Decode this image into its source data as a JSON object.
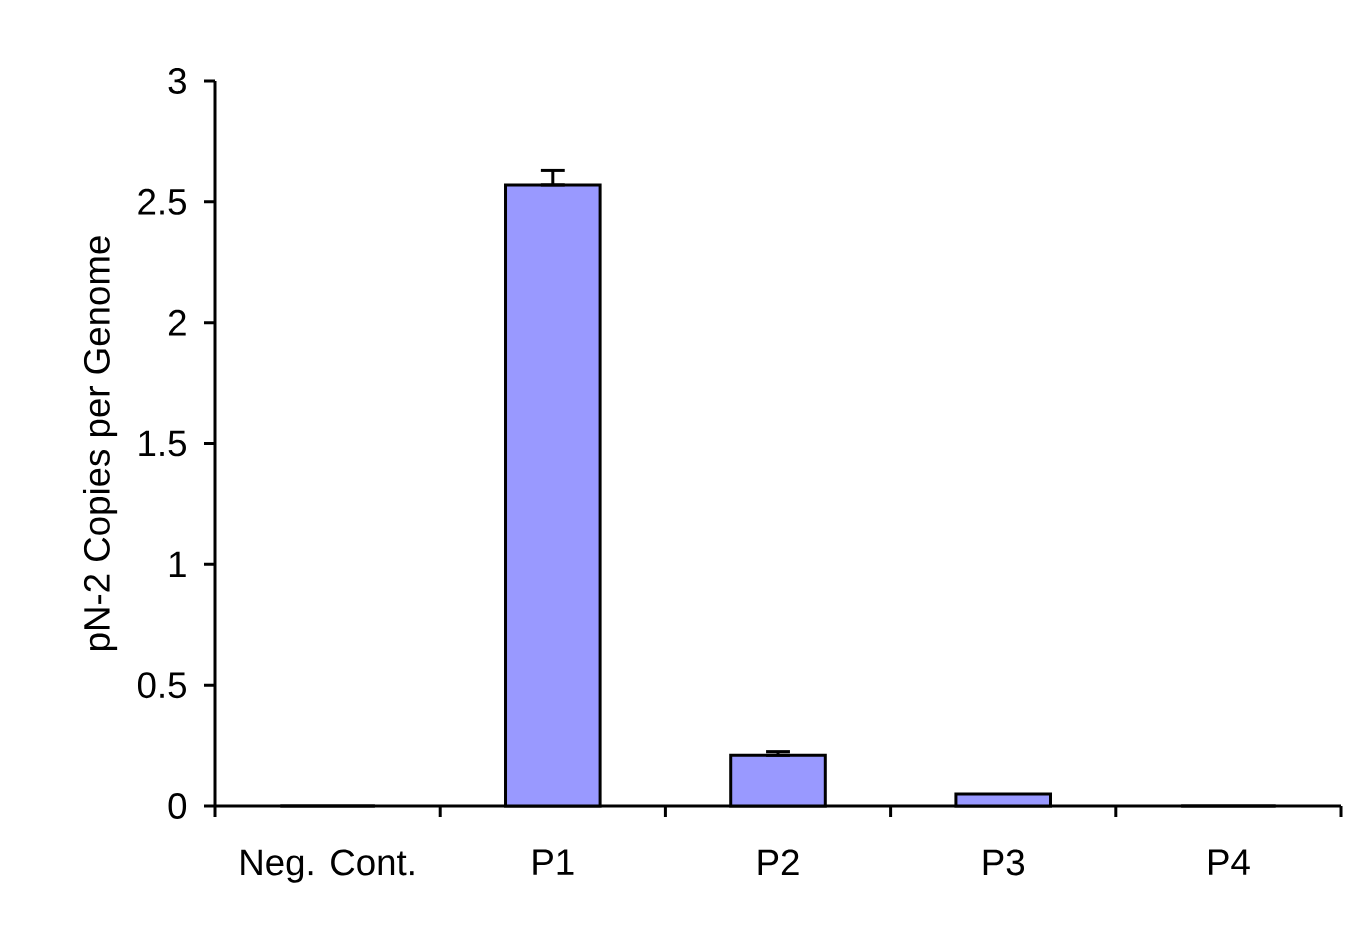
{
  "chart_data": {
    "type": "bar",
    "ylabel": "pN-2 Copies per Genome",
    "categories": [
      "Neg. Cont.",
      "P1",
      "P2",
      "P3",
      "P4"
    ],
    "values": [
      0,
      2.57,
      0.21,
      0.05,
      0
    ],
    "errors": [
      null,
      [
        2.57,
        2.63
      ],
      [
        0.21,
        0.225
      ],
      null,
      null
    ],
    "color": "#9999ff",
    "ylim": [
      0,
      3
    ],
    "yticks": [
      0,
      0.5,
      1,
      1.5,
      2,
      2.5,
      3
    ]
  }
}
